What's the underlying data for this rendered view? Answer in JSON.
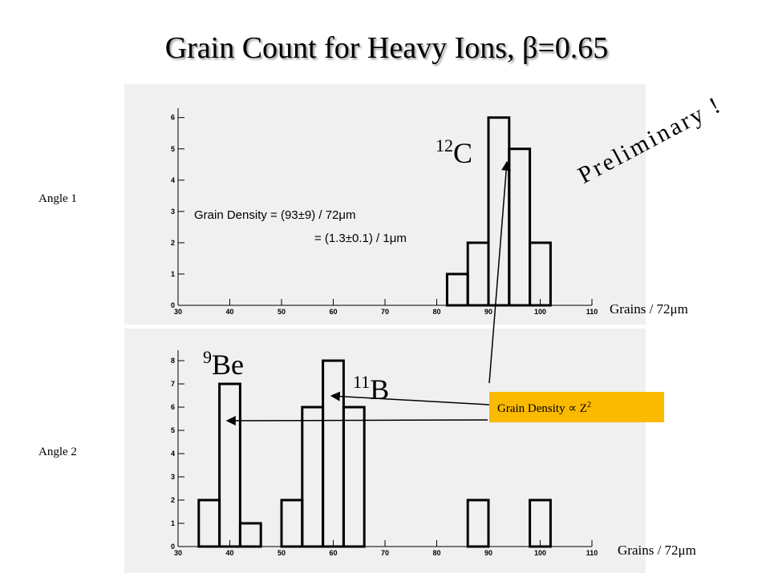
{
  "slide": {
    "title": "Grain Count for Heavy Ions, β=0.65",
    "preliminary": "Preliminary !",
    "note": {
      "text": "Grain Density ∝ Z",
      "power": "2"
    }
  },
  "chart_data": [
    {
      "type": "histogram",
      "label": "Angle 1",
      "xlabel": "Grains / 72μm",
      "bins": [
        82,
        86,
        90,
        94,
        98,
        102
      ],
      "values": [
        1,
        2,
        6,
        5,
        2
      ],
      "xlim": [
        30,
        110
      ],
      "ylim": [
        0,
        6.3
      ],
      "xticks": [
        30,
        40,
        50,
        60,
        70,
        80,
        90,
        100,
        110
      ],
      "yticks": [
        0,
        1,
        2,
        3,
        4,
        5,
        6
      ],
      "color": "#000000",
      "annotations": [
        {
          "mass": "12",
          "symbol": "C"
        }
      ],
      "density": [
        "Grain Density = (93±9) / 72μm",
        "= (1.3±0.1) / 1μm"
      ]
    },
    {
      "type": "histogram",
      "label": "Angle 2",
      "xlabel": "Grains / 72μm",
      "bins": [
        34,
        38,
        42,
        46,
        50,
        54,
        58,
        62,
        66,
        70,
        74,
        78,
        82,
        86,
        90,
        94,
        98,
        102
      ],
      "values": [
        2,
        7,
        1,
        0,
        2,
        6,
        8,
        6,
        0,
        0,
        0,
        0,
        0,
        2,
        0,
        0,
        2
      ],
      "xlim": [
        30,
        110
      ],
      "ylim": [
        0,
        8.45
      ],
      "xticks": [
        30,
        40,
        50,
        60,
        70,
        80,
        90,
        100,
        110
      ],
      "yticks": [
        0,
        1,
        2,
        3,
        4,
        5,
        6,
        7,
        8
      ],
      "color": "#000000",
      "annotations": [
        {
          "mass": "9",
          "symbol": "Be"
        },
        {
          "mass": "11",
          "symbol": "B"
        }
      ]
    }
  ]
}
